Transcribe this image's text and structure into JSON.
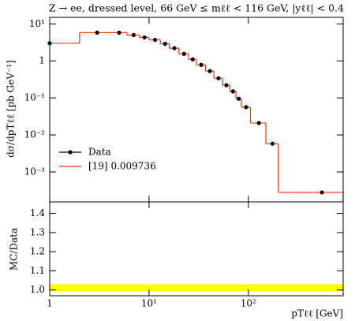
{
  "chart_data": {
    "type": "histogram",
    "title": "Z → ee, dressed level, 66 GeV ≤ mℓℓ < 116 GeV, |yℓℓ| < 0.4",
    "x_label": "pTℓℓ [GeV]",
    "y_label": "dσ/dpTℓℓ [pb GeV⁻¹]",
    "ratio_label": "MC/Data",
    "log_x": true,
    "log_y": true,
    "legend": "upper-left",
    "bins": [
      0,
      2,
      4,
      6,
      8,
      10,
      13,
      16,
      20,
      25,
      30,
      37,
      45,
      55,
      65,
      75,
      85,
      105,
      150,
      200,
      900
    ],
    "series": [
      {
        "name": "Data",
        "color": "#000000",
        "style": "points",
        "values": [
          3.0,
          5.8,
          5.8,
          5.0,
          4.3,
          3.7,
          2.9,
          2.2,
          1.55,
          1.1,
          0.78,
          0.53,
          0.34,
          0.22,
          0.15,
          0.095,
          0.056,
          0.021,
          0.0058,
          0.00028
        ]
      },
      {
        "name": "[19] 0.009736",
        "color": "#ee3311",
        "style": "step",
        "values": [
          3.0,
          5.8,
          5.8,
          5.0,
          4.3,
          3.7,
          2.9,
          2.2,
          1.55,
          1.1,
          0.78,
          0.53,
          0.34,
          0.22,
          0.15,
          0.095,
          0.056,
          0.021,
          0.0058,
          0.00028
        ]
      }
    ],
    "xlim": [
      1,
      900
    ],
    "xticks": [
      1,
      {
        "value": 10,
        "label": "10¹"
      },
      {
        "value": 100,
        "label": "10²"
      }
    ],
    "ylim": [
      0.000155,
      15
    ],
    "yticks": [
      {
        "value": 0.001,
        "label": "10⁻³"
      },
      {
        "value": 0.01,
        "label": "10⁻²"
      },
      {
        "value": 0.1,
        "label": "10⁻¹"
      },
      1,
      {
        "value": 10,
        "label": "10¹"
      }
    ],
    "ratio_ylim": [
      0.97,
      1.46
    ],
    "ratio_yticks": [
      {
        "value": 1.0,
        "label": "1.0"
      },
      {
        "value": 1.1,
        "label": "1.1"
      },
      {
        "value": 1.2,
        "label": "1.2"
      },
      {
        "value": 1.3,
        "label": "1.3"
      },
      {
        "value": 1.4,
        "label": "1.4"
      }
    ],
    "ratio_band": {
      "low": 0.995,
      "high": 1.03,
      "color": "#ffff00"
    }
  }
}
